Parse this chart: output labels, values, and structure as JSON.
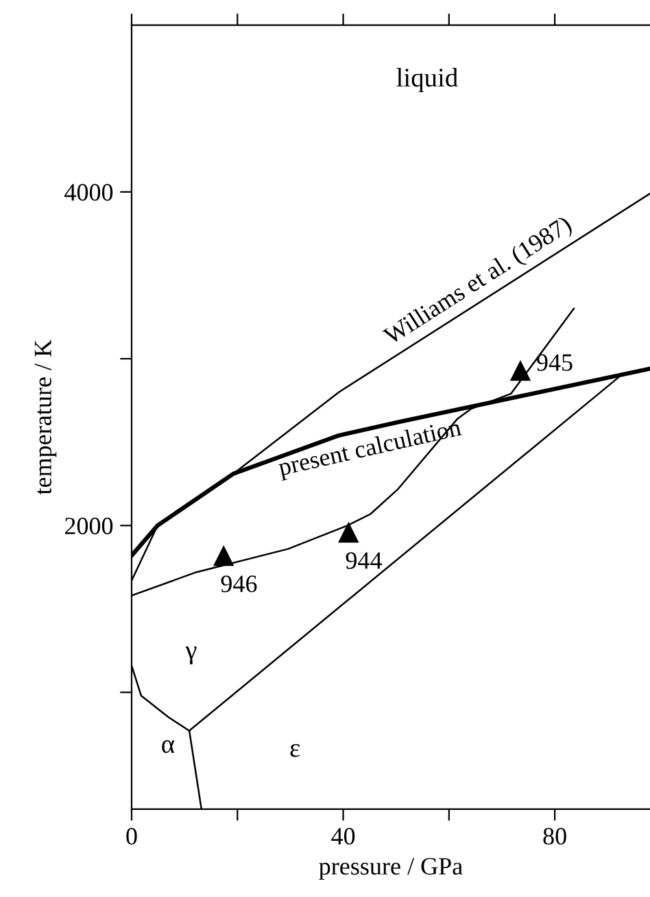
{
  "chart_data": {
    "type": "line",
    "xlabel": "pressure / GPa",
    "ylabel": "temperature / K",
    "xlim": [
      0,
      98
    ],
    "ylim": [
      300,
      5000
    ],
    "xticks": [
      0,
      {
        "value": 20,
        "label": null
      },
      40,
      {
        "value": 60,
        "label": null
      },
      80
    ],
    "yticks": [
      {
        "value": 1000,
        "label": null
      },
      2000,
      {
        "value": 3000,
        "label": null
      },
      4000
    ],
    "grid": false,
    "legend": false,
    "marker": "none",
    "line_style": "solid",
    "series": [
      {
        "name": "present calculation",
        "color": "#000000",
        "x": [
          0,
          4.9,
          19.2,
          39.2,
          50.4,
          71.2,
          98
        ],
        "values": [
          1820,
          2000,
          2310,
          2540,
          2620,
          2760,
          2940
        ]
      },
      {
        "name": "Williams et al. (1987)",
        "color": "#000000",
        "x": [
          0,
          4.9,
          19.2,
          39.2,
          98
        ],
        "values": [
          1670,
          2000,
          2310,
          2800,
          3990
        ]
      },
      {
        "color": "#000000",
        "x": [
          0,
          12.2,
          29.6,
          40.8,
          45.2,
          50.4,
          61.6,
          64.2,
          71.7,
          83.6
        ],
        "values": [
          1580,
          1720,
          1860,
          2000,
          2070,
          2220,
          2640,
          2700,
          2790,
          3300
        ]
      },
      {
        "color": "#000000",
        "x": [
          10.9,
          92.5
        ],
        "values": [
          770,
          2900
        ]
      },
      {
        "color": "#000000",
        "x": [
          0,
          1.8,
          7,
          10.9
        ],
        "values": [
          1160,
          980,
          850,
          770
        ]
      },
      {
        "color": "#000000",
        "x": [
          10.9,
          13.2
        ],
        "values": [
          770,
          300
        ]
      },
      {
        "type": "scatter",
        "marker": "triangle",
        "color": "#000000",
        "x": [
          17.4,
          41,
          73.5
        ],
        "values": [
          1820,
          1960,
          2930
        ]
      }
    ],
    "annotations": [
      {
        "text": "946",
        "x": 17.4,
        "y": 1820
      },
      {
        "text": "944",
        "x": 41,
        "y": 1960
      },
      {
        "text": "945",
        "x": 73.5,
        "y": 2930
      },
      "liquid",
      "γ",
      "α",
      "ε"
    ]
  }
}
